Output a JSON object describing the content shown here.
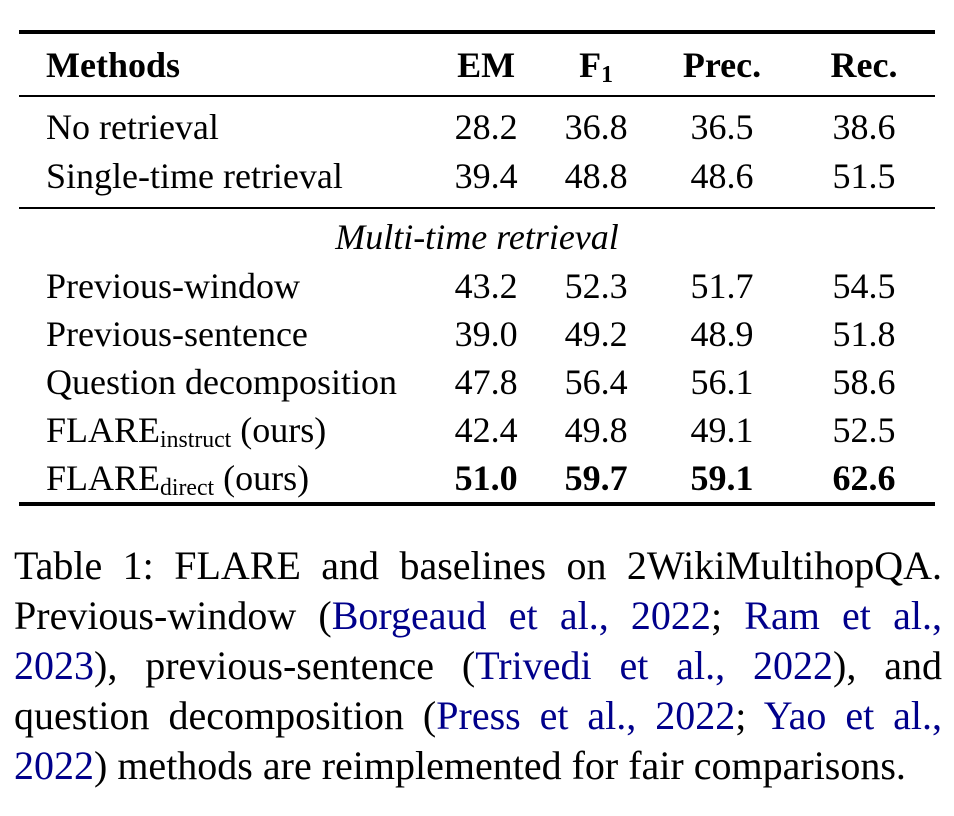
{
  "table": {
    "header": {
      "methods_label": "Methods",
      "cols": [
        {
          "pre": "EM",
          "sub": ""
        },
        {
          "pre": "F",
          "sub": "1"
        },
        {
          "pre": "Prec.",
          "sub": ""
        },
        {
          "pre": "Rec.",
          "sub": ""
        }
      ]
    },
    "rows_top": [
      {
        "method": {
          "pre": "No retrieval",
          "sub": "",
          "post": ""
        },
        "v": [
          "28.2",
          "36.8",
          "36.5",
          "38.6"
        ],
        "bold": false
      },
      {
        "method": {
          "pre": "Single-time retrieval",
          "sub": "",
          "post": ""
        },
        "v": [
          "39.4",
          "48.8",
          "48.6",
          "51.5"
        ],
        "bold": false
      }
    ],
    "section_label": "Multi-time retrieval",
    "rows_bottom": [
      {
        "method": {
          "pre": "Previous-window",
          "sub": "",
          "post": ""
        },
        "v": [
          "43.2",
          "52.3",
          "51.7",
          "54.5"
        ],
        "bold": false
      },
      {
        "method": {
          "pre": "Previous-sentence",
          "sub": "",
          "post": ""
        },
        "v": [
          "39.0",
          "49.2",
          "48.9",
          "51.8"
        ],
        "bold": false
      },
      {
        "method": {
          "pre": "Question decomposition",
          "sub": "",
          "post": ""
        },
        "v": [
          "47.8",
          "56.4",
          "56.1",
          "58.6"
        ],
        "bold": false
      },
      {
        "method": {
          "pre": "FLARE",
          "sub": "instruct",
          "post": " (ours)"
        },
        "v": [
          "42.4",
          "49.8",
          "49.1",
          "52.5"
        ],
        "bold": false
      },
      {
        "method": {
          "pre": "FLARE",
          "sub": "direct",
          "post": " (ours)"
        },
        "v": [
          "51.0",
          "59.7",
          "59.1",
          "62.6"
        ],
        "bold": true
      }
    ]
  },
  "caption": {
    "citation_color": "#00008B",
    "segments": [
      {
        "text": "Table 1: FLARE and baselines on 2WikiMultihopQA. Previous-window (",
        "cite": false
      },
      {
        "text": "Borgeaud et al., 2022",
        "cite": true
      },
      {
        "text": "; ",
        "cite": false
      },
      {
        "text": "Ram et al., 2023",
        "cite": true
      },
      {
        "text": "), previous-sentence (",
        "cite": false
      },
      {
        "text": "Trivedi et al., 2022",
        "cite": true
      },
      {
        "text": "), and question decomposition (",
        "cite": false
      },
      {
        "text": "Press et al., 2022",
        "cite": true
      },
      {
        "text": "; ",
        "cite": false
      },
      {
        "text": "Yao et al., 2022",
        "cite": true
      },
      {
        "text": ") methods are reimplemented for fair comparisons.",
        "cite": false
      }
    ]
  }
}
